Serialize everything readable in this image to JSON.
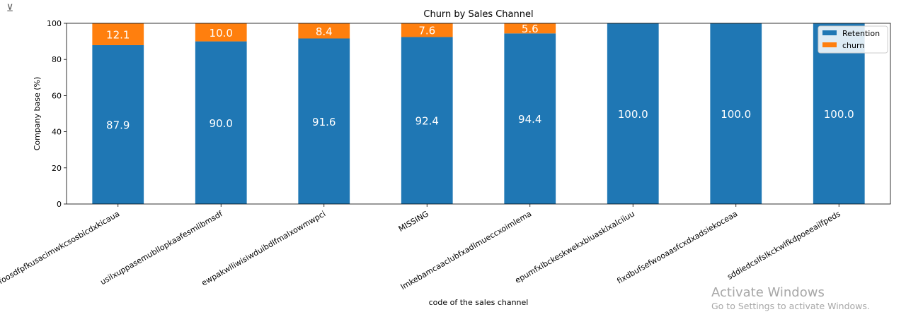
{
  "toolbar": {
    "output_icon": "output-toggle-icon"
  },
  "overlay": {
    "activate_title": "Activate Windows",
    "activate_sub": "Go to Settings to activate Windows."
  },
  "chart_data": {
    "type": "bar",
    "stacked": true,
    "title": "Churn by Sales Channel",
    "xlabel": "code of the sales channel",
    "ylabel": "Company base (%)",
    "ylim": [
      0,
      100
    ],
    "yticks": [
      0,
      20,
      40,
      60,
      80,
      100
    ],
    "grid": false,
    "legend_position": "top-right",
    "categories": [
      "foosdfpfkusacimwkcsosbicdxkicaua",
      "usilxuppasemubllopkaafesmlibmsdf",
      "ewpakwlliwisiwduibdlfmalxowmwpci",
      "MISSING",
      "lmkebamcaaclubfxadlmueccxoimlema",
      "epumfxlbckeskwekxbiuasklxalciiuu",
      "fixdbufsefwooaasfcxdxadsiekoceaa",
      "sddiedcslfslkckwlfkdpoeeailfpeds"
    ],
    "series": [
      {
        "name": "Retention",
        "color": "#1f77b4",
        "values": [
          87.9,
          90.0,
          91.6,
          92.4,
          94.4,
          100.0,
          100.0,
          100.0
        ]
      },
      {
        "name": "churn",
        "color": "#ff7f0e",
        "values": [
          12.1,
          10.0,
          8.4,
          7.6,
          5.6,
          0,
          0,
          0
        ]
      }
    ]
  }
}
